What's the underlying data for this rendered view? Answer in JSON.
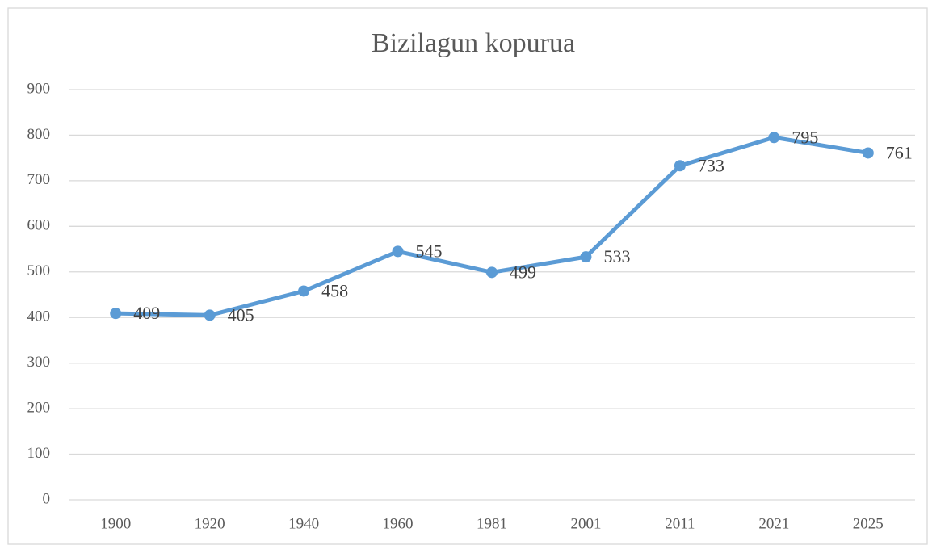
{
  "chart_data": {
    "type": "line",
    "title": "Bizilagun kopurua",
    "categories": [
      "1900",
      "1920",
      "1940",
      "1960",
      "1981",
      "2001",
      "2011",
      "2021",
      "2025"
    ],
    "series": [
      {
        "name": "Bizilagun kopurua",
        "color": "#5b9bd5",
        "values": [
          409,
          405,
          458,
          545,
          499,
          533,
          733,
          795,
          761
        ]
      }
    ],
    "ylim": [
      0,
      900
    ],
    "yticks": [
      0,
      100,
      200,
      300,
      400,
      500,
      600,
      700,
      800,
      900
    ],
    "grid": true
  }
}
